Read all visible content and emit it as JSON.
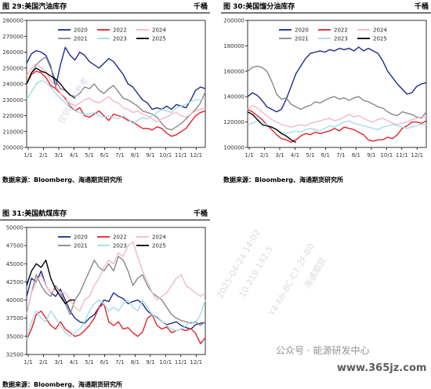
{
  "panels": [
    {
      "title": "图 29:美国汽油库存",
      "unit": "千桶",
      "source": "数据来源：Bloomberg、海通期货研究所",
      "chart_data": {
        "type": "line",
        "x_ticks": [
          "1/1",
          "2/1",
          "3/1",
          "4/1",
          "5/1",
          "6/1",
          "7/1",
          "8/1",
          "9/1",
          "10/1",
          "11/1",
          "12/1"
        ],
        "ylim": [
          200000,
          280000
        ],
        "y_ticks": [
          "200000",
          "210000",
          "220000",
          "230000",
          "240000",
          "250000",
          "260000",
          "270000",
          "280000"
        ],
        "legend": [
          "2020",
          "2021",
          "2022",
          "2023",
          "2024",
          "2025"
        ],
        "series": [
          {
            "name": "2020",
            "color": "#1f2a8c",
            "values": [
              253000,
              259000,
              261000,
              260000,
              258000,
              251000,
              238000,
              252000,
              263000,
              258000,
              255000,
              260000,
              258000,
              254000,
              252000,
              250000,
              253000,
              256000,
              254000,
              250000,
              246000,
              240000,
              238000,
              234000,
              230000,
              228000,
              224000,
              225000,
              224000,
              226000,
              224000,
              227000,
              226000,
              225000,
              230000,
              236000,
              238000,
              237000
            ]
          },
          {
            "name": "2021",
            "color": "#888888",
            "values": [
              240000,
              247000,
              252000,
              255000,
              257000,
              250000,
              242000,
              237000,
              236000,
              233000,
              232000,
              234000,
              238000,
              237000,
              240000,
              236000,
              234000,
              237000,
              239000,
              235000,
              231000,
              230000,
              228000,
              226000,
              223000,
              222000,
              221000,
              219000,
              215000,
              212000,
              211000,
              213000,
              215000,
              218000,
              221000,
              224000,
              228000,
              235000
            ]
          },
          {
            "name": "2022",
            "color": "#e8202a",
            "values": [
              240000,
              246000,
              248000,
              247000,
              244000,
              239000,
              237000,
              234000,
              231000,
              226000,
              223000,
              225000,
              220000,
              219000,
              221000,
              223000,
              220000,
              217000,
              221000,
              220000,
              219000,
              217000,
              216000,
              214000,
              212000,
              212000,
              211000,
              213000,
              212000,
              209000,
              207000,
              208000,
              210000,
              212000,
              216000,
              220000,
              222000,
              223000
            ]
          },
          {
            "name": "2023",
            "color": "#a6dce8",
            "values": [
              230000,
              235000,
              240000,
              242000,
              241000,
              238000,
              234000,
              231000,
              228000,
              225000,
              223000,
              222000,
              221000,
              221000,
              222000,
              220000,
              219000,
              220000,
              219000,
              218000,
              220000,
              218000,
              215000,
              217000,
              219000,
              218000,
              220000,
              222000,
              224000,
              223000,
              222000,
              225000,
              226000,
              227000,
              229000,
              230000,
              230000,
              231000
            ]
          },
          {
            "name": "2024",
            "color": "#f2b8c8",
            "values": [
              245000,
              250000,
              253000,
              250000,
              248000,
              242000,
              239000,
              234000,
              230000,
              228000,
              226000,
              228000,
              230000,
              231000,
              229000,
              228000,
              230000,
              232000,
              229000,
              228000,
              225000,
              224000,
              222000,
              223000,
              221000,
              220000,
              218000,
              216000,
              218000,
              219000,
              221000,
              222000,
              220000,
              219000,
              221000,
              223000,
              224000,
              225000
            ]
          },
          {
            "name": "2025",
            "color": "#000000",
            "values": [
              240000,
              247000,
              250000,
              248000,
              247000,
              245000,
              243000,
              240000,
              236000,
              233000,
              231000
            ]
          }
        ]
      }
    },
    {
      "title": "图 30:美国馏分油库存",
      "unit": "千桶",
      "source": "数据来源：Bloomberg、海通期货研究所",
      "chart_data": {
        "type": "line",
        "x_ticks": [
          "1/1",
          "2/1",
          "3/1",
          "4/1",
          "5/1",
          "6/1",
          "7/1",
          "8/1",
          "9/1",
          "10/1",
          "11/1",
          "12/1"
        ],
        "ylim": [
          100000,
          200000
        ],
        "y_ticks": [
          "100000",
          "120000",
          "140000",
          "160000",
          "180000",
          "200000"
        ],
        "legend": [
          "2020",
          "2021",
          "2022",
          "2023",
          "2024",
          "2025"
        ],
        "series": [
          {
            "name": "2020",
            "color": "#1f2a8c",
            "values": [
              140000,
              143000,
              141000,
              137000,
              132000,
              130000,
              128000,
              130000,
              138000,
              148000,
              158000,
              164000,
              170000,
              174000,
              175000,
              176000,
              175000,
              177000,
              176000,
              178000,
              177000,
              178000,
              176000,
              179000,
              176000,
              178000,
              176000,
              174000,
              168000,
              160000,
              155000,
              150000,
              146000,
              142000,
              143000,
              148000,
              150000,
              151000
            ]
          },
          {
            "name": "2021",
            "color": "#888888",
            "values": [
              160000,
              163000,
              164000,
              163000,
              160000,
              152000,
              142000,
              138000,
              139000,
              134000,
              132000,
              130000,
              132000,
              133000,
              136000,
              135000,
              137000,
              139000,
              140000,
              138000,
              139000,
              137000,
              139000,
              140000,
              137000,
              136000,
              134000,
              132000,
              131000,
              128000,
              126000,
              125000,
              128000,
              127000,
              126000,
              124000,
              123000,
              128000
            ]
          },
          {
            "name": "2022",
            "color": "#e8202a",
            "values": [
              130000,
              128000,
              125000,
              122000,
              118000,
              114000,
              110000,
              107000,
              106000,
              104000,
              106000,
              109000,
              111000,
              110000,
              112000,
              111000,
              112000,
              113000,
              115000,
              113000,
              116000,
              115000,
              114000,
              112000,
              110000,
              106000,
              105000,
              106000,
              106000,
              108000,
              107000,
              110000,
              115000,
              117000,
              120000,
              120000,
              119000,
              121000
            ]
          },
          {
            "name": "2023",
            "color": "#a6dce8",
            "values": [
              118000,
              119000,
              121000,
              120000,
              118000,
              116000,
              114000,
              112000,
              111000,
              112000,
              113000,
              112000,
              114000,
              115000,
              114000,
              113000,
              115000,
              117000,
              116000,
              118000,
              120000,
              121000,
              119000,
              118000,
              117000,
              116000,
              115000,
              114000,
              116000,
              117000,
              118000,
              117000,
              116000,
              115000,
              116000,
              117000,
              118000,
              118000
            ]
          },
          {
            "name": "2024",
            "color": "#f2b8c8",
            "values": [
              130000,
              133000,
              131000,
              128000,
              125000,
              122000,
              120000,
              118000,
              117000,
              116000,
              117000,
              118000,
              117000,
              119000,
              120000,
              121000,
              122000,
              123000,
              121000,
              122000,
              124000,
              126000,
              124000,
              125000,
              123000,
              121000,
              120000,
              122000,
              123000,
              121000,
              119000,
              118000,
              119000,
              120000,
              122000,
              123000,
              124000,
              124000
            ]
          },
          {
            "name": "2025",
            "color": "#000000",
            "values": [
              128000,
              126000,
              122000,
              118000,
              117000,
              116000,
              114000,
              111000,
              109000,
              106000,
              104000
            ]
          }
        ]
      }
    },
    {
      "title": "图 31:美国航煤库存",
      "unit": "千桶",
      "source": "数据来源：Bloomberg、海通期货研究所",
      "chart_data": {
        "type": "line",
        "x_ticks": [
          "1/1",
          "2/1",
          "3/1",
          "4/1",
          "5/1",
          "6/1",
          "7/1",
          "8/1",
          "9/1",
          "10/1",
          "11/1",
          "12/1"
        ],
        "ylim": [
          32500,
          50000
        ],
        "y_ticks": [
          "32500",
          "35000",
          "37500",
          "40000",
          "42500",
          "45000",
          "47500",
          "50000"
        ],
        "legend": [
          "2020",
          "2021",
          "2022",
          "2023",
          "2024",
          "2025"
        ],
        "series": [
          {
            "name": "2020",
            "color": "#1f2a8c",
            "values": [
              40500,
              43000,
              42500,
              44000,
              42000,
              41000,
              40500,
              41500,
              40000,
              38500,
              37500,
              37000,
              36800,
              37500,
              38000,
              39000,
              40000,
              39800,
              41000,
              40500,
              40200,
              39500,
              39800,
              40000,
              39500,
              38500,
              38000,
              37600,
              37000,
              36600,
              36800,
              37000,
              36500,
              36200,
              36000,
              36600,
              36800,
              36900
            ]
          },
          {
            "name": "2021",
            "color": "#888888",
            "values": [
              38000,
              41000,
              43500,
              42000,
              41000,
              40500,
              42000,
              41000,
              39500,
              38000,
              40000,
              41000,
              42500,
              44000,
              45500,
              44500,
              44000,
              45000,
              44000,
              46000,
              45500,
              44000,
              42000,
              43000,
              43500,
              42000,
              41000,
              40500,
              40000,
              39000,
              38000,
              37500,
              37200,
              37000,
              36800,
              37000,
              36500,
              37000
            ]
          },
          {
            "name": "2022",
            "color": "#e8202a",
            "values": [
              34500,
              36000,
              38000,
              38500,
              37500,
              36500,
              36000,
              37000,
              36000,
              35500,
              35000,
              35200,
              35800,
              36500,
              37500,
              39000,
              39500,
              37000,
              36500,
              37000,
              36000,
              36200,
              35500,
              35000,
              35600,
              37500,
              38000,
              36500,
              36000,
              36300,
              35500,
              35800,
              36000,
              35800,
              36100,
              35400,
              34000,
              34800
            ]
          },
          {
            "name": "2023",
            "color": "#a6dce8",
            "values": [
              34500,
              37000,
              38500,
              37500,
              37000,
              38500,
              37500,
              36500,
              35500,
              35000,
              35500,
              36000,
              37000,
              38500,
              39500,
              40000,
              39500,
              38500,
              39000,
              38500,
              39500,
              40000,
              39000,
              38500,
              40000,
              39000,
              38000,
              37500,
              37000,
              36500,
              36000,
              35800,
              36000,
              36500,
              37000,
              36800,
              38000,
              40000
            ]
          },
          {
            "name": "2024",
            "color": "#f2b8c8",
            "values": [
              38000,
              41000,
              42500,
              43500,
              42000,
              41000,
              41500,
              41000,
              41000,
              40000,
              39000,
              38500,
              40000,
              40500,
              42000,
              43000,
              44500,
              45500,
              45000,
              46500,
              46000,
              47500,
              48000,
              46000,
              44000,
              42500,
              41000,
              40000,
              40500,
              41000,
              42000,
              43000,
              43500,
              42000,
              41500,
              41000,
              40500,
              41000
            ]
          },
          {
            "name": "2025",
            "color": "#000000",
            "values": [
              42000,
              44000,
              45000,
              44500,
              45500,
              43000,
              41500,
              40500,
              39500,
              40000,
              40000
            ]
          }
        ]
      }
    }
  ],
  "watermarks": [
    "仅供学习参考",
    "2025-04-24 14:02",
    "10.219.142.5",
    "Y4-6b-8C-C7-2F-B0",
    "海通期货",
    "公众号 · 能源研发中心",
    "www.365jz.com"
  ]
}
